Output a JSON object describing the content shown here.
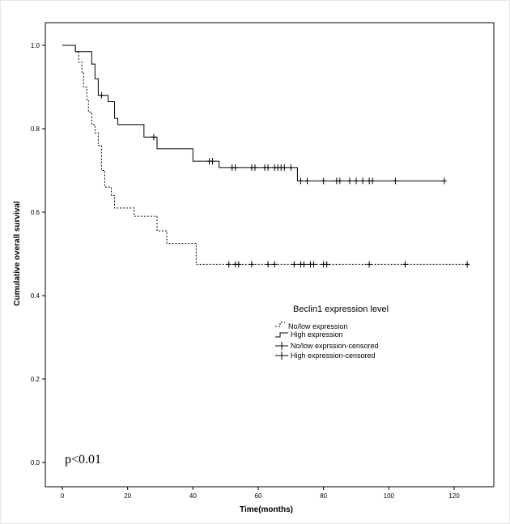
{
  "chart_data": {
    "type": "line",
    "title": "",
    "xlabel": "Time(months)",
    "ylabel": "Cumulative overall survival",
    "xlim": [
      0,
      130
    ],
    "ylim": [
      0,
      1.03
    ],
    "x_ticks": [
      0,
      20,
      40,
      60,
      80,
      100,
      120
    ],
    "x_tick_labels": [
      "0",
      "20",
      "40",
      "60",
      "80",
      "100",
      "120"
    ],
    "y_ticks": [
      0.0,
      0.2,
      0.4,
      0.6,
      0.8,
      1.0
    ],
    "y_tick_labels": [
      "0.0",
      "0.2",
      "0.4",
      "0.6",
      "0.8",
      "1.0"
    ],
    "grid": false,
    "legend": {
      "title": "Beclin1 expression level",
      "placement": "center-right",
      "entries": [
        "No/low expression",
        "High expression",
        "No/low exprssion-censored",
        "High expression-censored"
      ]
    },
    "annotation": "p<0.01",
    "series": [
      {
        "name": "No/low expression",
        "style": "dotted",
        "color": "#000000",
        "steps": [
          [
            0,
            1.0
          ],
          [
            4,
            0.985
          ],
          [
            5,
            0.96
          ],
          [
            6,
            0.935
          ],
          [
            6.5,
            0.9
          ],
          [
            7.5,
            0.87
          ],
          [
            8,
            0.84
          ],
          [
            9,
            0.81
          ],
          [
            10,
            0.79
          ],
          [
            11,
            0.76
          ],
          [
            12,
            0.7
          ],
          [
            13,
            0.66
          ],
          [
            15,
            0.64
          ],
          [
            16,
            0.61
          ],
          [
            22,
            0.59
          ],
          [
            29,
            0.555
          ],
          [
            32,
            0.525
          ],
          [
            41,
            0.475
          ],
          [
            124,
            0.475
          ]
        ],
        "censored": [
          [
            51,
            0.475
          ],
          [
            53,
            0.475
          ],
          [
            54,
            0.475
          ],
          [
            58,
            0.475
          ],
          [
            63,
            0.475
          ],
          [
            65,
            0.475
          ],
          [
            71,
            0.475
          ],
          [
            73,
            0.475
          ],
          [
            74,
            0.475
          ],
          [
            76,
            0.475
          ],
          [
            77,
            0.475
          ],
          [
            80,
            0.475
          ],
          [
            81,
            0.475
          ],
          [
            94,
            0.475
          ],
          [
            105,
            0.475
          ],
          [
            124,
            0.475
          ]
        ]
      },
      {
        "name": "High expression",
        "style": "solid",
        "color": "#000000",
        "steps": [
          [
            0,
            1.0
          ],
          [
            4,
            0.985
          ],
          [
            9,
            0.955
          ],
          [
            10,
            0.92
          ],
          [
            11,
            0.88
          ],
          [
            13,
            0.88
          ],
          [
            14,
            0.865
          ],
          [
            16,
            0.825
          ],
          [
            17,
            0.81
          ],
          [
            25,
            0.78
          ],
          [
            29,
            0.752
          ],
          [
            40,
            0.722
          ],
          [
            48,
            0.707
          ],
          [
            72,
            0.675
          ],
          [
            117,
            0.675
          ]
        ],
        "censored": [
          [
            12,
            0.88
          ],
          [
            28,
            0.78
          ],
          [
            45,
            0.722
          ],
          [
            46,
            0.722
          ],
          [
            52,
            0.707
          ],
          [
            53,
            0.707
          ],
          [
            58,
            0.707
          ],
          [
            59,
            0.707
          ],
          [
            62,
            0.707
          ],
          [
            63,
            0.707
          ],
          [
            65,
            0.707
          ],
          [
            66,
            0.707
          ],
          [
            67,
            0.707
          ],
          [
            68,
            0.707
          ],
          [
            70,
            0.707
          ],
          [
            73,
            0.675
          ],
          [
            75,
            0.675
          ],
          [
            80,
            0.675
          ],
          [
            84,
            0.675
          ],
          [
            85,
            0.675
          ],
          [
            88,
            0.675
          ],
          [
            90,
            0.675
          ],
          [
            92,
            0.675
          ],
          [
            94,
            0.675
          ],
          [
            95,
            0.675
          ],
          [
            102,
            0.675
          ],
          [
            117,
            0.675
          ]
        ]
      }
    ]
  }
}
